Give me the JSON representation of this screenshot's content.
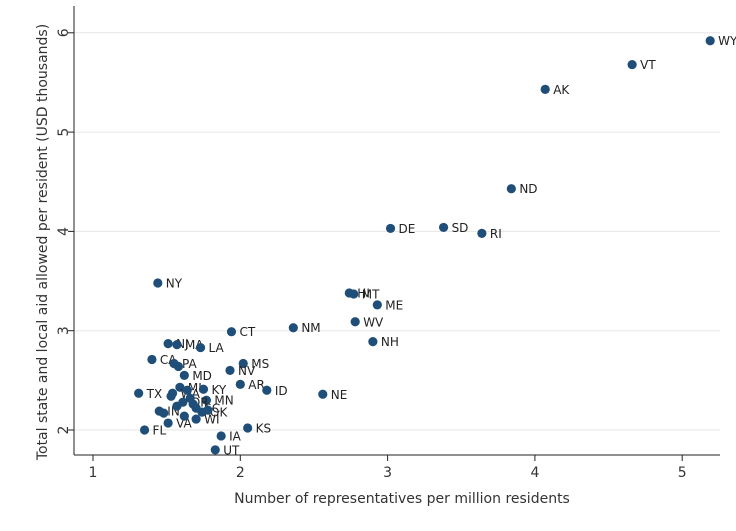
{
  "chart_data": {
    "type": "scatter",
    "xlabel": "Number of representatives per million residents",
    "ylabel": "Total state and local aid allowed per resident (USD thousands)",
    "xlim": [
      0.9,
      5.25
    ],
    "ylim": [
      1.75,
      6.1
    ],
    "xticks": [
      1,
      2,
      3,
      4,
      5
    ],
    "yticks": [
      2,
      3,
      4,
      5,
      6
    ],
    "grid": "horizontal",
    "marker_color": "#1f4e79",
    "points": [
      {
        "label": "WY",
        "x": 5.19,
        "y": 5.92
      },
      {
        "label": "VT",
        "x": 4.66,
        "y": 5.68
      },
      {
        "label": "AK",
        "x": 4.07,
        "y": 5.43
      },
      {
        "label": "ND",
        "x": 3.84,
        "y": 4.43
      },
      {
        "label": "DE",
        "x": 3.02,
        "y": 4.03
      },
      {
        "label": "SD",
        "x": 3.38,
        "y": 4.04
      },
      {
        "label": "RI",
        "x": 3.64,
        "y": 3.98
      },
      {
        "label": "NY",
        "x": 1.44,
        "y": 3.48
      },
      {
        "label": "HI",
        "x": 2.74,
        "y": 3.38
      },
      {
        "label": "MT",
        "x": 2.77,
        "y": 3.37
      },
      {
        "label": "ME",
        "x": 2.93,
        "y": 3.26
      },
      {
        "label": "WV",
        "x": 2.78,
        "y": 3.09
      },
      {
        "label": "NH",
        "x": 2.9,
        "y": 2.89
      },
      {
        "label": "NM",
        "x": 2.36,
        "y": 3.03
      },
      {
        "label": "CT",
        "x": 1.94,
        "y": 2.99
      },
      {
        "label": "NJ",
        "x": 1.51,
        "y": 2.87
      },
      {
        "label": "MA",
        "x": 1.57,
        "y": 2.86
      },
      {
        "label": "LA",
        "x": 1.73,
        "y": 2.83
      },
      {
        "label": "CA",
        "x": 1.4,
        "y": 2.71
      },
      {
        "label": "PA",
        "x": 1.55,
        "y": 2.67
      },
      {
        "label": "MS",
        "x": 2.02,
        "y": 2.67
      },
      {
        "label": "NV",
        "x": 1.93,
        "y": 2.6
      },
      {
        "label": "MD",
        "x": 1.62,
        "y": 2.55
      },
      {
        "label": "AR",
        "x": 2.0,
        "y": 2.46
      },
      {
        "label": "ID",
        "x": 2.18,
        "y": 2.4
      },
      {
        "label": "MI",
        "x": 1.59,
        "y": 2.43
      },
      {
        "label": "KY",
        "x": 1.75,
        "y": 2.41
      },
      {
        "label": "TX",
        "x": 1.31,
        "y": 2.37
      },
      {
        "label": "NE",
        "x": 2.56,
        "y": 2.36
      },
      {
        "label": "WA",
        "x": 1.54,
        "y": 2.37
      },
      {
        "label": "MN",
        "x": 1.77,
        "y": 2.3
      },
      {
        "label": "OR",
        "x": 1.61,
        "y": 2.28
      },
      {
        "label": "SC",
        "x": 1.7,
        "y": 2.22
      },
      {
        "label": "OK",
        "x": 1.74,
        "y": 2.18
      },
      {
        "label": "IN",
        "x": 1.45,
        "y": 2.19
      },
      {
        "label": "VA",
        "x": 1.51,
        "y": 2.07
      },
      {
        "label": "WI",
        "x": 1.7,
        "y": 2.11
      },
      {
        "label": "KS",
        "x": 2.05,
        "y": 2.02
      },
      {
        "label": "FL",
        "x": 1.35,
        "y": 2.0
      },
      {
        "label": "IA",
        "x": 1.87,
        "y": 1.94
      },
      {
        "label": "UT",
        "x": 1.83,
        "y": 1.8
      },
      {
        "label": "",
        "x": 1.48,
        "y": 2.17
      },
      {
        "label": "",
        "x": 1.53,
        "y": 2.34
      },
      {
        "label": "",
        "x": 1.57,
        "y": 2.24
      },
      {
        "label": "",
        "x": 1.62,
        "y": 2.14
      },
      {
        "label": "",
        "x": 1.66,
        "y": 2.32
      },
      {
        "label": "",
        "x": 1.58,
        "y": 2.64
      },
      {
        "label": "",
        "x": 1.64,
        "y": 2.4
      },
      {
        "label": "",
        "x": 1.68,
        "y": 2.26
      },
      {
        "label": "",
        "x": 1.78,
        "y": 2.2
      }
    ]
  }
}
